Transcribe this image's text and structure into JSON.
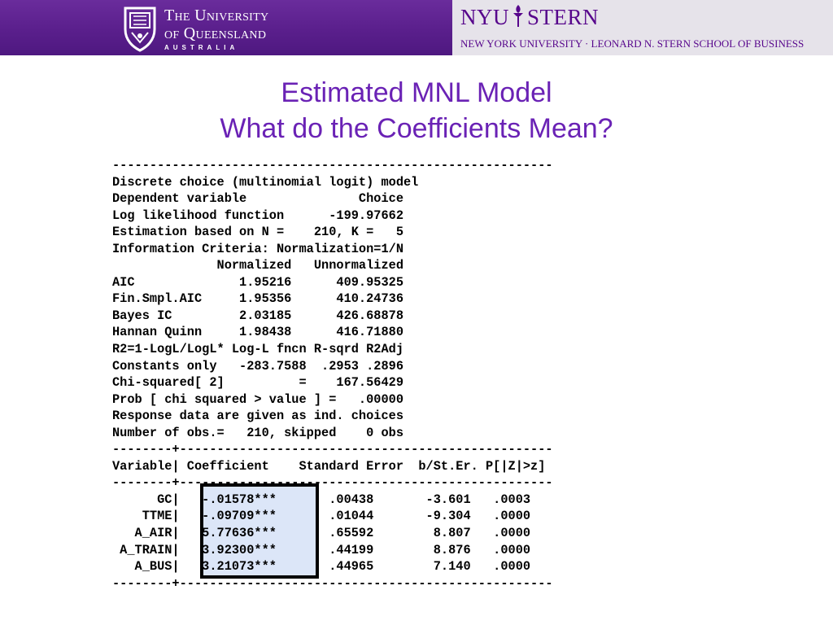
{
  "header": {
    "uq_line1": "The University",
    "uq_line2": "of Queensland",
    "uq_line3": "AUSTRALIA",
    "nyu_left": "NYU",
    "nyu_right": "STERN",
    "nyu_school": "NEW YORK UNIVERSITY · LEONARD N. STERN SCHOOL OF BUSINESS",
    "colors": {
      "uq_purple": "#5a1f8c",
      "nyu_violet": "#57068c",
      "title_purple": "#6a22b5",
      "box_fill": "#dce6f8"
    }
  },
  "title": {
    "line1": "Estimated MNL Model",
    "line2": "What do the Coefficients Mean?"
  },
  "output_lines": [
    "-----------------------------------------------------------",
    "Discrete choice (multinomial logit) model",
    "Dependent variable               Choice",
    "Log likelihood function      -199.97662",
    "Estimation based on N =    210, K =   5",
    "Information Criteria: Normalization=1/N",
    "              Normalized   Unnormalized",
    "AIC              1.95216      409.95325",
    "Fin.Smpl.AIC     1.95356      410.24736",
    "Bayes IC         2.03185      426.68878",
    "Hannan Quinn     1.98438      416.71880",
    "R2=1-LogL/LogL* Log-L fncn R-sqrd R2Adj",
    "Constants only   -283.7588  .2953 .2896",
    "Chi-squared[ 2]          =    167.56429",
    "Prob [ chi squared > value ] =   .00000",
    "Response data are given as ind. choices",
    "Number of obs.=   210, skipped    0 obs",
    "--------+--------------------------------------------------",
    "Variable| Coefficient    Standard Error  b/St.Er. P[|Z|>z]",
    "--------+--------------------------------------------------",
    "      GC|   -.01578***       .00438       -3.601   .0003",
    "    TTME|   -.09709***       .01044       -9.304   .0000",
    "   A_AIR|   5.77636***       .65592        8.807   .0000",
    " A_TRAIN|   3.92300***       .44199        8.876   .0000",
    "   A_BUS|   3.21073***       .44965        7.140   .0000",
    "--------+--------------------------------------------------"
  ]
}
